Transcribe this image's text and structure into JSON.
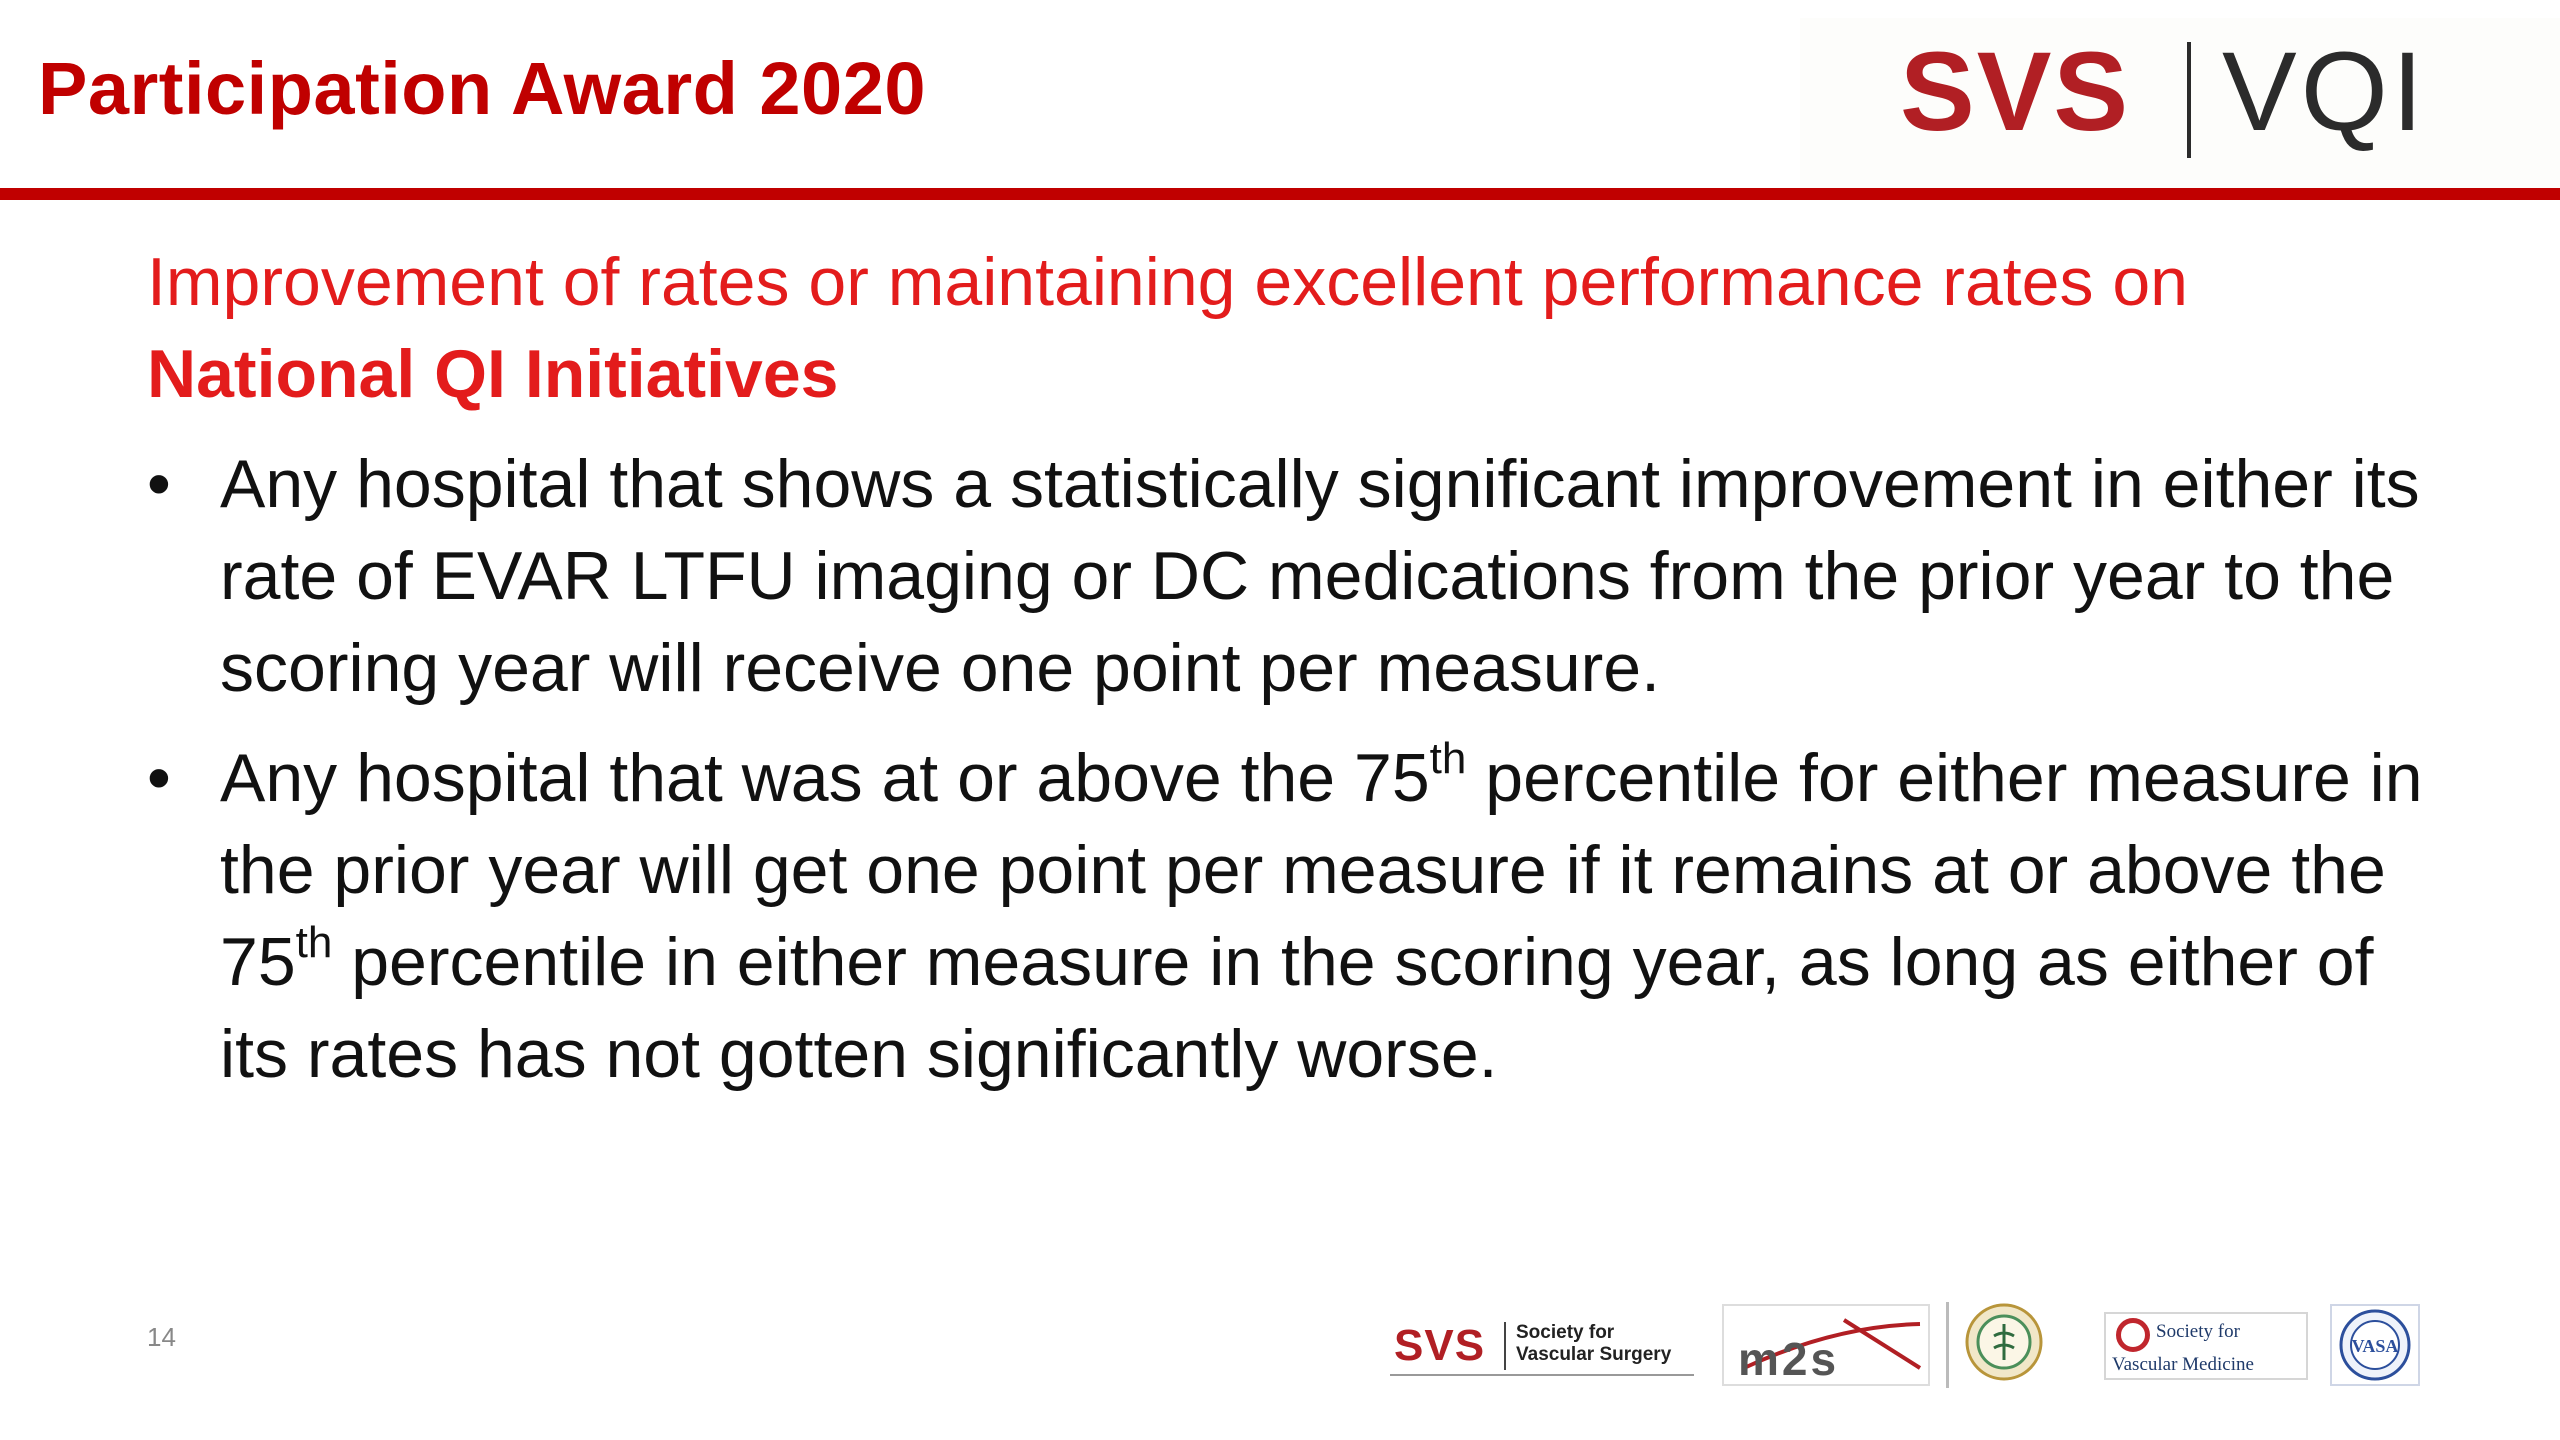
{
  "header": {
    "title": "Participation Award 2020",
    "logo": {
      "left": "SVS",
      "right": "VQI"
    }
  },
  "subheading": {
    "plain": "Improvement of rates or maintaining excellent performance rates on ",
    "bold": "National QI Initiatives"
  },
  "bullets": [
    {
      "text": "Any hospital that shows a statistically significant improvement in either its rate of EVAR LTFU imaging or DC medications from the prior year to the scoring year will receive one point per measure."
    },
    {
      "part1": "Any hospital that was at or above the 75",
      "sup1": "th",
      "part2": " percentile for either measure in the prior year will get one point per measure if it remains at or above the 75",
      "sup2": "th",
      "part3": " percentile in either measure in the scoring year, as long as either of its rates has not gotten significantly worse."
    }
  ],
  "footer": {
    "page_number": "14",
    "logos": {
      "svs_abbr": "SVS",
      "svs_name": "Society for Vascular Surgery",
      "m2s": "m2s",
      "svm_line1": "Society for",
      "svm_line2": "Vascular Medicine",
      "vasa": "VASA"
    }
  },
  "colors": {
    "title_red": "#c00000",
    "subheading_red": "#e31c1c",
    "rule_red": "#c00000",
    "body_text": "#111111"
  },
  "icons": [
    "bullet-dot",
    "seal-icon",
    "vasa-seal-icon"
  ]
}
